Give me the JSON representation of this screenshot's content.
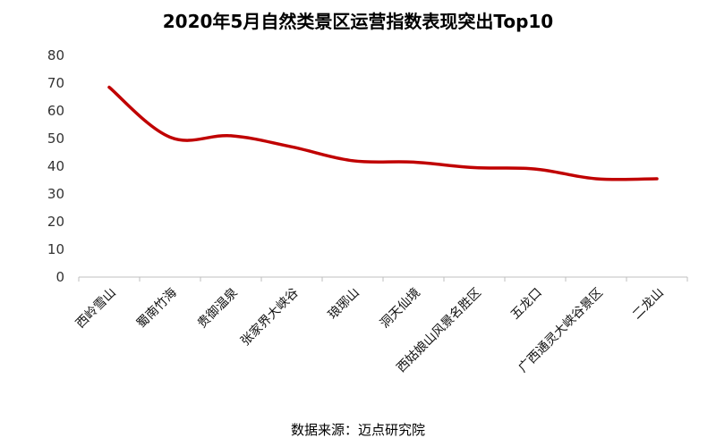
{
  "chart_data": {
    "type": "line",
    "title": "2020年5月自然类景区运营指数表现突出Top10",
    "categories": [
      "西岭雪山",
      "蜀南竹海",
      "贵御温泉",
      "张家界大峡谷",
      "琅琊山",
      "洞天仙境",
      "西姑娘山风景名胜区",
      "五龙口",
      "广西通灵大峡谷景区",
      "二龙山"
    ],
    "series": [
      {
        "values": [
          68.5,
          50.5,
          51,
          47,
          42,
          41.5,
          39.5,
          39,
          35.5,
          35.5
        ],
        "color": "#c00000"
      }
    ],
    "ylim": [
      0,
      80
    ],
    "yticks": [
      0,
      10,
      20,
      30,
      40,
      50,
      60,
      70,
      80
    ],
    "xlabel": "",
    "ylabel": "",
    "grid": false,
    "smooth": true
  },
  "source": "数据来源：迈点研究院"
}
